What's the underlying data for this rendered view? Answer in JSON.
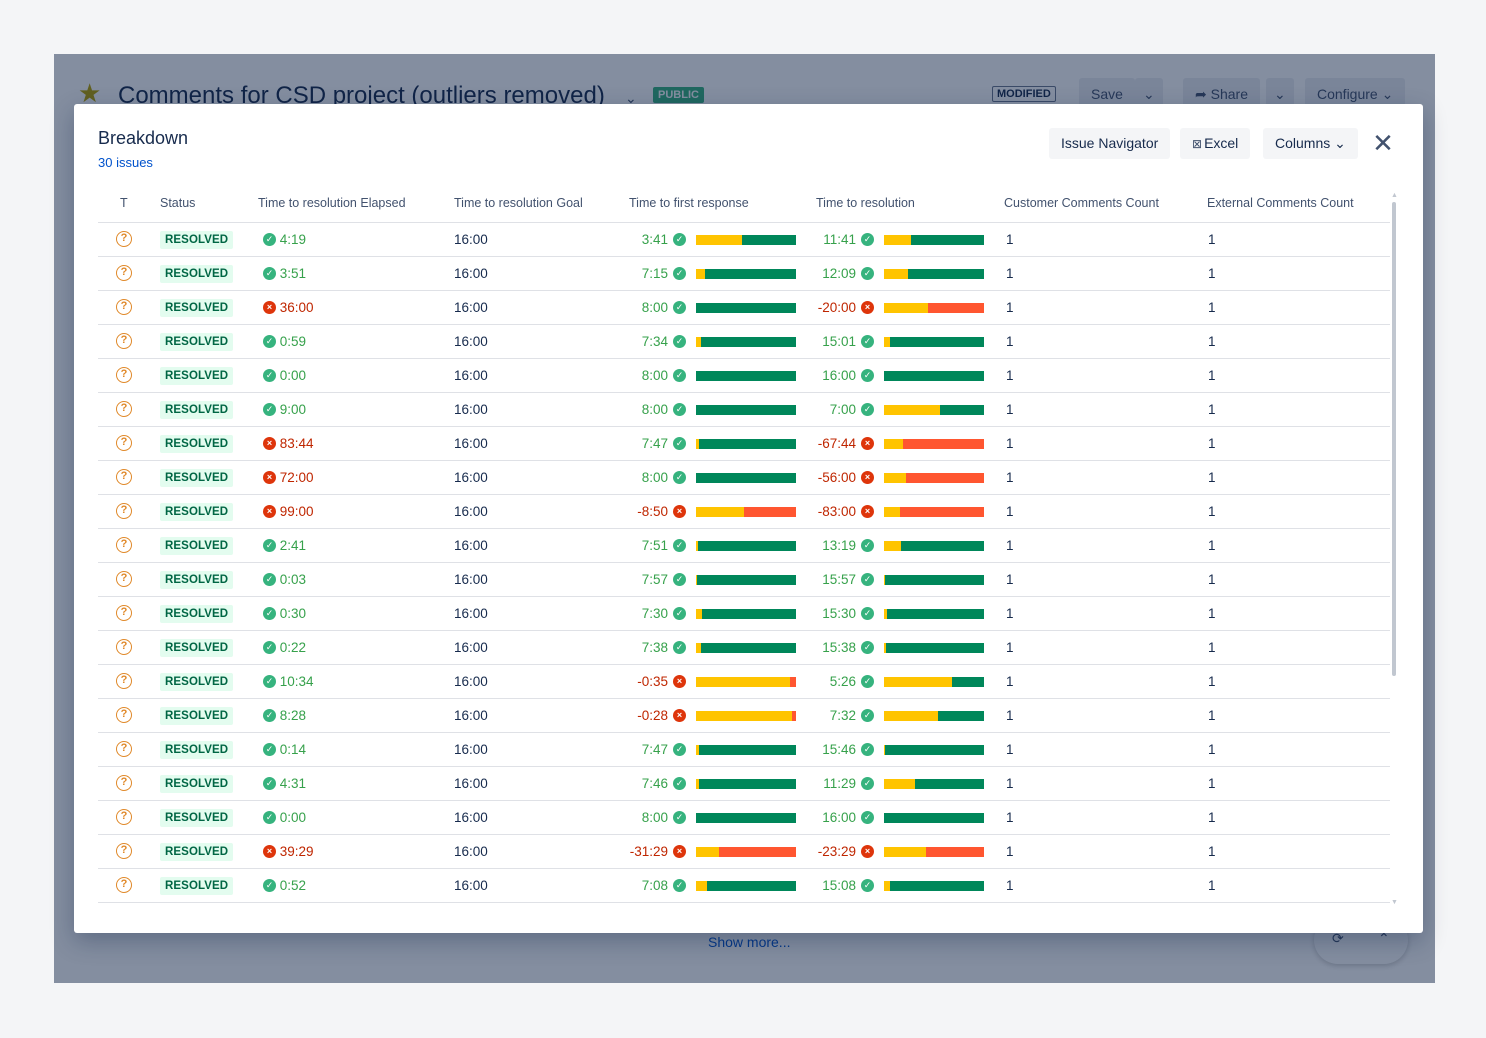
{
  "background": {
    "title": "Comments for CSD project (outliers removed)",
    "badge_public": "PUBLIC",
    "badge_modified": "MODIFIED",
    "save_label": "Save",
    "share_label": "Share",
    "configure_label": "Configure",
    "show_more": "Show more..."
  },
  "modal": {
    "title": "Breakdown",
    "issue_count": "30 issues",
    "buttons": {
      "issue_navigator": "Issue Navigator",
      "excel": "Excel",
      "columns": "Columns"
    }
  },
  "table": {
    "columns": [
      "T",
      "Status",
      "Time to resolution Elapsed",
      "Time to resolution Goal",
      "Time to first response",
      "Time to resolution",
      "Customer Comments Count",
      "External Comments Count"
    ],
    "rows": [
      {
        "status": "RESOLVED",
        "elapsed": "4:19",
        "elapsed_ok": true,
        "goal": "16:00",
        "first": "3:41",
        "first_ok": true,
        "first_fill": 0.46,
        "res": "11:41",
        "res_ok": true,
        "res_fill": 0.27,
        "cust": "1",
        "ext": "1"
      },
      {
        "status": "RESOLVED",
        "elapsed": "3:51",
        "elapsed_ok": true,
        "goal": "16:00",
        "first": "7:15",
        "first_ok": true,
        "first_fill": 0.09,
        "res": "12:09",
        "res_ok": true,
        "res_fill": 0.24,
        "cust": "1",
        "ext": "1"
      },
      {
        "status": "RESOLVED",
        "elapsed": "36:00",
        "elapsed_ok": false,
        "goal": "16:00",
        "first": "8:00",
        "first_ok": true,
        "first_fill": 0.0,
        "res": "-20:00",
        "res_ok": false,
        "res_fill": 0.44,
        "cust": "1",
        "ext": "1"
      },
      {
        "status": "RESOLVED",
        "elapsed": "0:59",
        "elapsed_ok": true,
        "goal": "16:00",
        "first": "7:34",
        "first_ok": true,
        "first_fill": 0.05,
        "res": "15:01",
        "res_ok": true,
        "res_fill": 0.06,
        "cust": "1",
        "ext": "1"
      },
      {
        "status": "RESOLVED",
        "elapsed": "0:00",
        "elapsed_ok": true,
        "goal": "16:00",
        "first": "8:00",
        "first_ok": true,
        "first_fill": 0.0,
        "res": "16:00",
        "res_ok": true,
        "res_fill": 0.0,
        "cust": "1",
        "ext": "1"
      },
      {
        "status": "RESOLVED",
        "elapsed": "9:00",
        "elapsed_ok": true,
        "goal": "16:00",
        "first": "8:00",
        "first_ok": true,
        "first_fill": 0.0,
        "res": "7:00",
        "res_ok": true,
        "res_fill": 0.56,
        "cust": "1",
        "ext": "1"
      },
      {
        "status": "RESOLVED",
        "elapsed": "83:44",
        "elapsed_ok": false,
        "goal": "16:00",
        "first": "7:47",
        "first_ok": true,
        "first_fill": 0.03,
        "res": "-67:44",
        "res_ok": false,
        "res_fill": 0.19,
        "cust": "1",
        "ext": "1"
      },
      {
        "status": "RESOLVED",
        "elapsed": "72:00",
        "elapsed_ok": false,
        "goal": "16:00",
        "first": "8:00",
        "first_ok": true,
        "first_fill": 0.0,
        "res": "-56:00",
        "res_ok": false,
        "res_fill": 0.22,
        "cust": "1",
        "ext": "1"
      },
      {
        "status": "RESOLVED",
        "elapsed": "99:00",
        "elapsed_ok": false,
        "goal": "16:00",
        "first": "-8:50",
        "first_ok": false,
        "first_fill": 0.48,
        "res": "-83:00",
        "res_ok": false,
        "res_fill": 0.16,
        "cust": "1",
        "ext": "1"
      },
      {
        "status": "RESOLVED",
        "elapsed": "2:41",
        "elapsed_ok": true,
        "goal": "16:00",
        "first": "7:51",
        "first_ok": true,
        "first_fill": 0.02,
        "res": "13:19",
        "res_ok": true,
        "res_fill": 0.17,
        "cust": "1",
        "ext": "1"
      },
      {
        "status": "RESOLVED",
        "elapsed": "0:03",
        "elapsed_ok": true,
        "goal": "16:00",
        "first": "7:57",
        "first_ok": true,
        "first_fill": 0.01,
        "res": "15:57",
        "res_ok": true,
        "res_fill": 0.01,
        "cust": "1",
        "ext": "1"
      },
      {
        "status": "RESOLVED",
        "elapsed": "0:30",
        "elapsed_ok": true,
        "goal": "16:00",
        "first": "7:30",
        "first_ok": true,
        "first_fill": 0.06,
        "res": "15:30",
        "res_ok": true,
        "res_fill": 0.03,
        "cust": "1",
        "ext": "1"
      },
      {
        "status": "RESOLVED",
        "elapsed": "0:22",
        "elapsed_ok": true,
        "goal": "16:00",
        "first": "7:38",
        "first_ok": true,
        "first_fill": 0.05,
        "res": "15:38",
        "res_ok": true,
        "res_fill": 0.02,
        "cust": "1",
        "ext": "1"
      },
      {
        "status": "RESOLVED",
        "elapsed": "10:34",
        "elapsed_ok": true,
        "goal": "16:00",
        "first": "-0:35",
        "first_ok": false,
        "first_fill": 0.94,
        "res": "5:26",
        "res_ok": true,
        "res_fill": 0.68,
        "cust": "1",
        "ext": "1"
      },
      {
        "status": "RESOLVED",
        "elapsed": "8:28",
        "elapsed_ok": true,
        "goal": "16:00",
        "first": "-0:28",
        "first_ok": false,
        "first_fill": 0.96,
        "res": "7:32",
        "res_ok": true,
        "res_fill": 0.54,
        "cust": "1",
        "ext": "1"
      },
      {
        "status": "RESOLVED",
        "elapsed": "0:14",
        "elapsed_ok": true,
        "goal": "16:00",
        "first": "7:47",
        "first_ok": true,
        "first_fill": 0.03,
        "res": "15:46",
        "res_ok": true,
        "res_fill": 0.01,
        "cust": "1",
        "ext": "1"
      },
      {
        "status": "RESOLVED",
        "elapsed": "4:31",
        "elapsed_ok": true,
        "goal": "16:00",
        "first": "7:46",
        "first_ok": true,
        "first_fill": 0.03,
        "res": "11:29",
        "res_ok": true,
        "res_fill": 0.31,
        "cust": "1",
        "ext": "1"
      },
      {
        "status": "RESOLVED",
        "elapsed": "0:00",
        "elapsed_ok": true,
        "goal": "16:00",
        "first": "8:00",
        "first_ok": true,
        "first_fill": 0.0,
        "res": "16:00",
        "res_ok": true,
        "res_fill": 0.0,
        "cust": "1",
        "ext": "1"
      },
      {
        "status": "RESOLVED",
        "elapsed": "39:29",
        "elapsed_ok": false,
        "goal": "16:00",
        "first": "-31:29",
        "first_ok": false,
        "first_fill": 0.23,
        "res": "-23:29",
        "res_ok": false,
        "res_fill": 0.42,
        "cust": "1",
        "ext": "1"
      },
      {
        "status": "RESOLVED",
        "elapsed": "0:52",
        "elapsed_ok": true,
        "goal": "16:00",
        "first": "7:08",
        "first_ok": true,
        "first_fill": 0.11,
        "res": "15:08",
        "res_ok": true,
        "res_fill": 0.06,
        "cust": "1",
        "ext": "1"
      }
    ]
  },
  "colors": {
    "bar_yellow": "#ffc400",
    "bar_green": "#00875a",
    "bar_red": "#ff5630",
    "ok_text": "#36a14b",
    "breach_text": "#bf2600"
  }
}
